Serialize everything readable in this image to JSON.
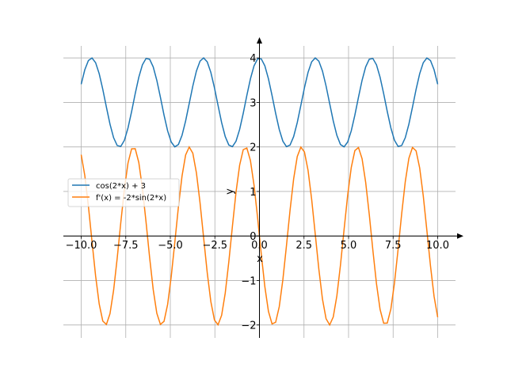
{
  "chart_data": {
    "type": "line",
    "title": "",
    "xlabel": "x",
    "ylabel": "y",
    "xlim": [
      -11,
      11
    ],
    "ylim": [
      -2.29,
      4.27
    ],
    "grid": true,
    "legend_position": "center-left",
    "x_sample_range": [
      -10,
      10
    ],
    "num_points": 100,
    "xticks": [
      -10,
      -7.5,
      -5,
      -2.5,
      0,
      2.5,
      5,
      7.5,
      10
    ],
    "xtick_labels": [
      "−10.0",
      "−7.5",
      "−5.0",
      "−2.5",
      "0.0",
      "2.5",
      "5.0",
      "7.5",
      "10.0"
    ],
    "yticks": [
      -2,
      -1,
      0,
      1,
      2,
      3,
      4
    ],
    "ytick_labels": [
      "−2",
      "−1",
      "0",
      "1",
      "2",
      "3",
      "4"
    ],
    "series": [
      {
        "name": "cos(2*x) + 3",
        "expr": "cos(2*x)+3",
        "color": "#1f77b4"
      },
      {
        "name": "f'(x) = -2*sin(2*x)",
        "expr": "-2*sin(2*x)",
        "color": "#ff7f0e"
      }
    ]
  }
}
